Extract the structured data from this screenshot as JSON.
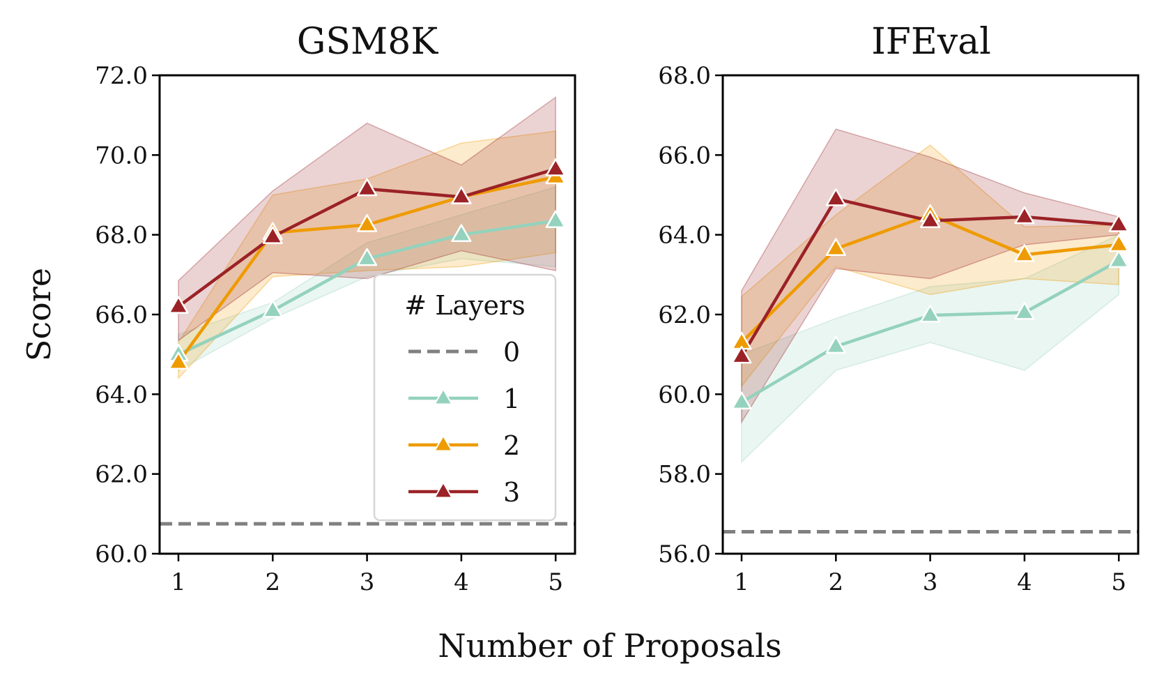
{
  "figure": {
    "ylabel": "Score",
    "xlabel": "Number of Proposals",
    "legend_title": "# Layers"
  },
  "chart_data": [
    {
      "type": "line",
      "title": "GSM8K",
      "xlabel": "Number of Proposals",
      "ylabel": "Score",
      "x": [
        1,
        2,
        3,
        4,
        5
      ],
      "xticks": [
        "1",
        "2",
        "3",
        "4",
        "5"
      ],
      "ylim": [
        60.0,
        72.0
      ],
      "yticks": [
        "60.0",
        "62.0",
        "64.0",
        "66.0",
        "68.0",
        "70.0",
        "72.0"
      ],
      "legend": "lower-right",
      "baseline": {
        "name": "0",
        "value": 60.75,
        "color": "#808080"
      },
      "series": [
        {
          "name": "1",
          "color": "#94d2bd",
          "values": [
            65.0,
            66.1,
            67.4,
            68.0,
            68.35
          ],
          "band_lo": [
            64.6,
            65.9,
            66.95,
            67.4,
            67.2
          ],
          "band_hi": [
            65.5,
            66.3,
            67.8,
            68.5,
            69.2
          ]
        },
        {
          "name": "2",
          "color": "#ee9b00",
          "values": [
            64.8,
            68.05,
            68.25,
            68.95,
            69.45
          ],
          "band_lo": [
            64.4,
            66.95,
            67.1,
            67.2,
            67.55
          ],
          "band_hi": [
            65.3,
            69.0,
            69.4,
            70.3,
            70.6
          ]
        },
        {
          "name": "3",
          "color": "#9b2226",
          "values": [
            66.2,
            67.95,
            69.15,
            68.95,
            69.65
          ],
          "band_lo": [
            65.35,
            67.05,
            66.9,
            67.6,
            67.1
          ],
          "band_hi": [
            66.85,
            69.1,
            70.8,
            69.75,
            71.45
          ]
        }
      ]
    },
    {
      "type": "line",
      "title": "IFEval",
      "xlabel": "Number of Proposals",
      "ylabel": "Score",
      "x": [
        1,
        2,
        3,
        4,
        5
      ],
      "xticks": [
        "1",
        "2",
        "3",
        "4",
        "5"
      ],
      "ylim": [
        56.0,
        68.0
      ],
      "yticks": [
        "56.0",
        "58.0",
        "60.0",
        "62.0",
        "64.0",
        "66.0",
        "68.0"
      ],
      "baseline": {
        "name": "0",
        "value": 56.55,
        "color": "#808080"
      },
      "series": [
        {
          "name": "1",
          "color": "#94d2bd",
          "values": [
            59.8,
            61.2,
            61.98,
            62.05,
            63.35
          ],
          "band_lo": [
            58.3,
            60.6,
            61.3,
            60.6,
            62.5
          ],
          "band_hi": [
            61.0,
            61.9,
            62.7,
            62.9,
            64.0
          ]
        },
        {
          "name": "2",
          "color": "#ee9b00",
          "values": [
            61.3,
            63.65,
            64.5,
            63.5,
            63.75
          ],
          "band_lo": [
            60.2,
            63.2,
            62.5,
            62.9,
            62.75
          ],
          "band_hi": [
            62.45,
            64.5,
            66.25,
            64.2,
            64.25
          ]
        },
        {
          "name": "3",
          "color": "#9b2226",
          "values": [
            60.95,
            64.9,
            64.35,
            64.45,
            64.25
          ],
          "band_lo": [
            59.3,
            63.15,
            62.9,
            63.75,
            64.0
          ],
          "band_hi": [
            62.6,
            66.65,
            65.95,
            65.05,
            64.45
          ]
        }
      ]
    }
  ]
}
